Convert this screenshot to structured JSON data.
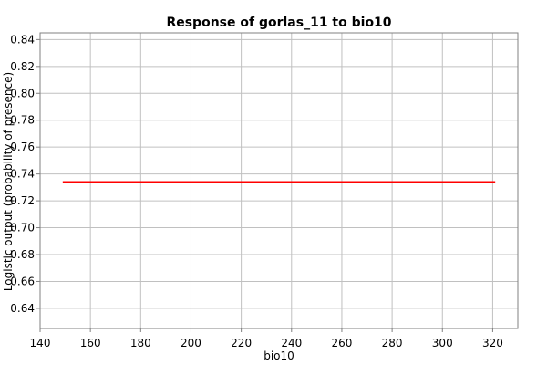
{
  "chart_data": {
    "type": "line",
    "title": "Response of gorlas_11 to bio10",
    "xlabel": "bio10",
    "ylabel": "Logistic output (probability of presence)",
    "xlim": [
      140,
      330
    ],
    "ylim": [
      0.625,
      0.845
    ],
    "xticks": [
      140,
      160,
      180,
      200,
      220,
      240,
      260,
      280,
      300,
      320
    ],
    "yticks": [
      0.64,
      0.66,
      0.68,
      0.7,
      0.72,
      0.74,
      0.76,
      0.78,
      0.8,
      0.82,
      0.84
    ],
    "xtick_labels": [
      "140",
      "160",
      "180",
      "200",
      "220",
      "240",
      "260",
      "280",
      "300",
      "320"
    ],
    "ytick_labels": [
      "0.64",
      "0.66",
      "0.68",
      "0.70",
      "0.72",
      "0.74",
      "0.76",
      "0.78",
      "0.80",
      "0.82",
      "0.84"
    ],
    "grid": true,
    "series": [
      {
        "color": "#ff0000",
        "x": [
          149,
          321
        ],
        "y": [
          0.734,
          0.734
        ]
      }
    ]
  }
}
